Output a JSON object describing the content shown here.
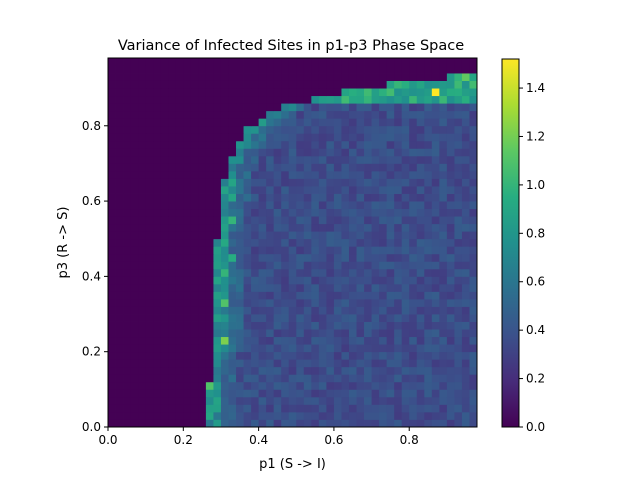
{
  "chart_data": {
    "type": "heatmap",
    "title": "Variance of Infected Sites in p1-p3 Phase Space",
    "xlabel": "p1 (S -> I)",
    "ylabel": "p3 (R -> S)",
    "xlim": [
      0.0,
      0.98
    ],
    "ylim": [
      0.0,
      0.98
    ],
    "grid": false,
    "colormap": "viridis",
    "colors": {
      "viridis_low": "#440154",
      "viridis_high": "#fde725",
      "axis": "#000000",
      "background": "#ffffff"
    },
    "grid_size": {
      "nx": 49,
      "ny": 49,
      "cell": 0.02
    },
    "x_ticks": [
      "0.0",
      "0.2",
      "0.4",
      "0.6",
      "0.8"
    ],
    "x_tick_values": [
      0.0,
      0.2,
      0.4,
      0.6,
      0.8
    ],
    "y_ticks": [
      "0.0",
      "0.2",
      "0.4",
      "0.6",
      "0.8"
    ],
    "y_tick_values": [
      0.0,
      0.2,
      0.4,
      0.6,
      0.8
    ],
    "colorbar": {
      "range": [
        0.0,
        1.52
      ],
      "ticks": [
        "0.0",
        "0.2",
        "0.4",
        "0.6",
        "0.8",
        "1.0",
        "1.2",
        "1.4"
      ],
      "tick_values": [
        0.0,
        0.2,
        0.4,
        0.6,
        0.8,
        1.0,
        1.2,
        1.4
      ]
    },
    "boundary_p1": [
      [
        0.0,
        0.27
      ],
      [
        0.1,
        0.27
      ],
      [
        0.2,
        0.28
      ],
      [
        0.3,
        0.29
      ],
      [
        0.4,
        0.29
      ],
      [
        0.5,
        0.29
      ],
      [
        0.6,
        0.3
      ],
      [
        0.66,
        0.31
      ],
      [
        0.72,
        0.33
      ],
      [
        0.78,
        0.36
      ],
      [
        0.82,
        0.4
      ],
      [
        0.85,
        0.46
      ],
      [
        0.87,
        0.54
      ],
      [
        0.89,
        0.62
      ],
      [
        0.91,
        0.74
      ],
      [
        0.93,
        0.9
      ],
      [
        0.95,
        0.97
      ]
    ],
    "field": {
      "interior_mean": 0.36,
      "interior_noise": 0.09,
      "edge_value": 0.75,
      "edge_noise": 0.15,
      "top_band_value": 0.9,
      "outside_value": 0.0
    },
    "highlights": [
      {
        "p1": 0.87,
        "p3": 0.89,
        "value": 1.52
      },
      {
        "p1": 0.95,
        "p3": 0.93,
        "value": 1.15
      },
      {
        "p1": 0.97,
        "p3": 0.91,
        "value": 1.05
      },
      {
        "p1": 0.31,
        "p3": 0.23,
        "value": 1.22
      },
      {
        "p1": 0.31,
        "p3": 0.33,
        "value": 1.1
      },
      {
        "p1": 0.27,
        "p3": 0.11,
        "value": 1.1
      },
      {
        "p1": 0.31,
        "p3": 0.41,
        "value": 1.0
      },
      {
        "p1": 0.33,
        "p3": 0.55,
        "value": 1.0
      },
      {
        "p1": 0.33,
        "p3": 0.45,
        "value": 0.95
      },
      {
        "p1": 0.31,
        "p3": 0.49,
        "value": 0.92
      },
      {
        "p1": 0.33,
        "p3": 0.61,
        "value": 0.9
      },
      {
        "p1": 0.27,
        "p3": 0.03,
        "value": 0.9
      }
    ]
  }
}
